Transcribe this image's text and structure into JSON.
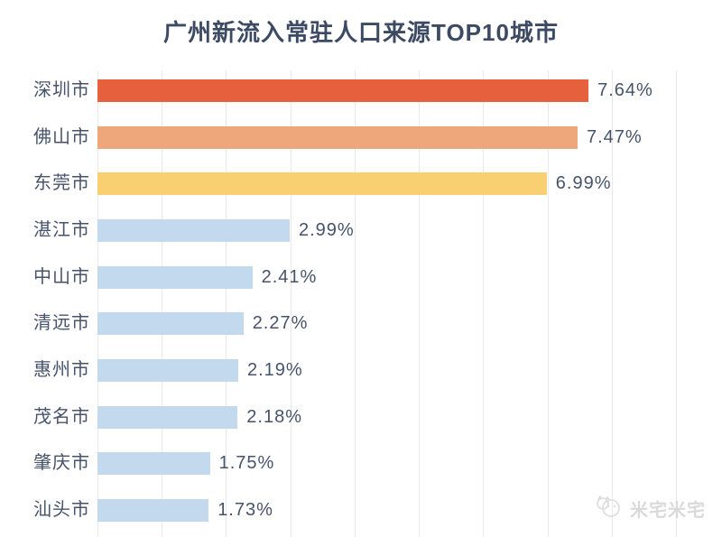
{
  "title": "广州新流入常驻人口来源TOP10城市",
  "watermark": {
    "text": "米宅米宅",
    "icon": "mizhai-mascot-logo",
    "color": "#dadada"
  },
  "chart_data": {
    "type": "bar",
    "orientation": "horizontal",
    "title": "广州新流入常驻人口来源TOP10城市",
    "categories": [
      "深圳市",
      "佛山市",
      "东莞市",
      "湛江市",
      "中山市",
      "清远市",
      "惠州市",
      "茂名市",
      "肇庆市",
      "汕头市"
    ],
    "values": [
      7.64,
      7.47,
      6.99,
      2.99,
      2.41,
      2.27,
      2.19,
      2.18,
      1.75,
      1.73
    ],
    "value_labels": [
      "7.64%",
      "7.47%",
      "6.99%",
      "2.99%",
      "2.41%",
      "2.27%",
      "2.19%",
      "2.18%",
      "1.75%",
      "1.73%"
    ],
    "bar_colors": [
      "#e7603e",
      "#eda77b",
      "#f8d072",
      "#c3d9ee",
      "#c3d9ee",
      "#c3d9ee",
      "#c3d9ee",
      "#c3d9ee",
      "#c3d9ee",
      "#c3d9ee"
    ],
    "xlim": [
      0,
      9
    ],
    "gridline_step": 1,
    "grid": true,
    "axis_tick_labels_visible": false,
    "legend": false,
    "colors": {
      "highlight_1": "#e7603e",
      "highlight_2": "#eda77b",
      "highlight_3": "#f8d072",
      "default_bar": "#c3d9ee",
      "text": "#46536b",
      "title_text": "#3d4a63",
      "gridline": "#e9e9e9",
      "background": "#ffffff"
    }
  }
}
